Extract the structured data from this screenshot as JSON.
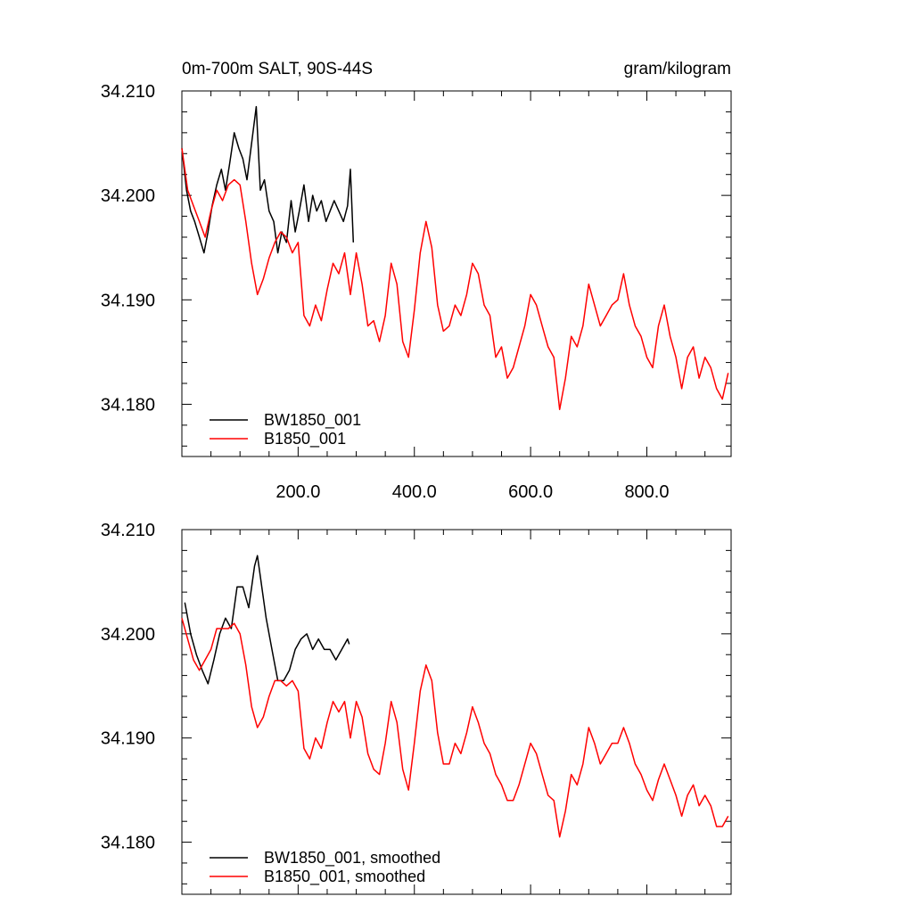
{
  "header": {
    "left_title": "0m-700m SALT, 90S-44S",
    "right_title": "gram/kilogram"
  },
  "chart_data": [
    {
      "type": "line",
      "panel": "raw",
      "xlim": [
        0,
        945
      ],
      "ylim": [
        34.175,
        34.21
      ],
      "xticks": [
        200,
        400,
        600,
        800
      ],
      "xtick_labels": [
        "200.0",
        "400.0",
        "600.0",
        "800.0"
      ],
      "yticks": [
        34.18,
        34.19,
        34.2,
        34.21
      ],
      "ytick_labels": [
        "34.180",
        "34.190",
        "34.200",
        "34.210"
      ],
      "grid": false,
      "legend_position": "bottom-left",
      "series": [
        {
          "name": "BW1850_001",
          "color": "#000000",
          "x": [
            0,
            8,
            15,
            22,
            30,
            38,
            45,
            52,
            60,
            68,
            75,
            82,
            90,
            98,
            105,
            112,
            120,
            128,
            135,
            142,
            150,
            158,
            165,
            172,
            180,
            188,
            195,
            202,
            210,
            218,
            225,
            232,
            240,
            248,
            255,
            262,
            270,
            278,
            285,
            290,
            295
          ],
          "y": [
            34.2045,
            34.2005,
            34.1985,
            34.1975,
            34.196,
            34.1945,
            34.1965,
            34.199,
            34.201,
            34.2025,
            34.2005,
            34.203,
            34.206,
            34.2045,
            34.2035,
            34.2015,
            34.205,
            34.2085,
            34.2005,
            34.2015,
            34.1985,
            34.1975,
            34.1945,
            34.1965,
            34.1955,
            34.1995,
            34.1965,
            34.1985,
            34.201,
            34.1975,
            34.2,
            34.1985,
            34.1995,
            34.1975,
            34.1985,
            34.1995,
            34.1985,
            34.1975,
            34.199,
            34.2025,
            34.1955
          ]
        },
        {
          "name": "B1850_001",
          "color": "#ff0000",
          "x": [
            0,
            10,
            20,
            30,
            40,
            50,
            60,
            70,
            80,
            90,
            100,
            110,
            120,
            130,
            140,
            150,
            160,
            170,
            180,
            190,
            200,
            210,
            220,
            230,
            240,
            250,
            260,
            270,
            280,
            290,
            300,
            310,
            320,
            330,
            340,
            350,
            360,
            370,
            380,
            390,
            400,
            410,
            420,
            430,
            440,
            450,
            460,
            470,
            480,
            490,
            500,
            510,
            520,
            530,
            540,
            550,
            560,
            570,
            580,
            590,
            600,
            610,
            620,
            630,
            640,
            650,
            660,
            670,
            680,
            690,
            700,
            710,
            720,
            730,
            740,
            750,
            760,
            770,
            780,
            790,
            800,
            810,
            820,
            830,
            840,
            850,
            860,
            870,
            880,
            890,
            900,
            910,
            920,
            930,
            940
          ],
          "y": [
            34.2045,
            34.2005,
            34.199,
            34.1975,
            34.196,
            34.1985,
            34.2005,
            34.1995,
            34.201,
            34.2015,
            34.201,
            34.1975,
            34.1935,
            34.1905,
            34.192,
            34.194,
            34.1955,
            34.1965,
            34.196,
            34.1945,
            34.1955,
            34.1885,
            34.1875,
            34.1895,
            34.188,
            34.191,
            34.1935,
            34.1925,
            34.1945,
            34.1905,
            34.1945,
            34.1915,
            34.1875,
            34.188,
            34.186,
            34.1885,
            34.1935,
            34.1915,
            34.186,
            34.1845,
            34.189,
            34.1945,
            34.1975,
            34.195,
            34.1895,
            34.187,
            34.1875,
            34.1895,
            34.1885,
            34.1905,
            34.1935,
            34.1925,
            34.1895,
            34.1885,
            34.1845,
            34.1855,
            34.1825,
            34.1835,
            34.1855,
            34.1875,
            34.1905,
            34.1895,
            34.1875,
            34.1855,
            34.1845,
            34.1795,
            34.1825,
            34.1865,
            34.1855,
            34.1875,
            34.1915,
            34.1895,
            34.1875,
            34.1885,
            34.1895,
            34.19,
            34.1925,
            34.1895,
            34.1875,
            34.1865,
            34.1845,
            34.1835,
            34.1875,
            34.1895,
            34.1865,
            34.1845,
            34.1815,
            34.1845,
            34.1855,
            34.1825,
            34.1845,
            34.1835,
            34.1815,
            34.1805,
            34.183
          ]
        }
      ]
    },
    {
      "type": "line",
      "panel": "smoothed",
      "xlim": [
        0,
        945
      ],
      "ylim": [
        34.175,
        34.21
      ],
      "xticks": [
        200,
        400,
        600,
        800
      ],
      "yticks": [
        34.18,
        34.19,
        34.2,
        34.21
      ],
      "ytick_labels": [
        "34.180",
        "34.190",
        "34.200",
        "34.210"
      ],
      "grid": false,
      "legend_position": "bottom-left",
      "series": [
        {
          "name": "BW1850_001, smoothed",
          "color": "#000000",
          "x": [
            5,
            15,
            25,
            35,
            45,
            55,
            65,
            75,
            85,
            95,
            105,
            115,
            125,
            130,
            135,
            145,
            155,
            165,
            175,
            185,
            195,
            205,
            215,
            225,
            235,
            245,
            255,
            265,
            275,
            285,
            288
          ],
          "y": [
            34.203,
            34.2,
            34.198,
            34.1965,
            34.1952,
            34.1975,
            34.2,
            34.2015,
            34.2005,
            34.2045,
            34.2045,
            34.2025,
            34.2065,
            34.2075,
            34.2055,
            34.2015,
            34.1985,
            34.1955,
            34.1955,
            34.1965,
            34.1985,
            34.1995,
            34.2,
            34.1985,
            34.1995,
            34.1985,
            34.1985,
            34.1975,
            34.1985,
            34.1995,
            34.199
          ]
        },
        {
          "name": "B1850_001, smoothed",
          "color": "#ff0000",
          "x": [
            0,
            10,
            20,
            30,
            40,
            50,
            60,
            70,
            80,
            90,
            100,
            110,
            120,
            130,
            140,
            150,
            160,
            170,
            180,
            190,
            200,
            210,
            220,
            230,
            240,
            250,
            260,
            270,
            280,
            290,
            300,
            310,
            320,
            330,
            340,
            350,
            360,
            370,
            380,
            390,
            400,
            410,
            420,
            430,
            440,
            450,
            460,
            470,
            480,
            490,
            500,
            510,
            520,
            530,
            540,
            550,
            560,
            570,
            580,
            590,
            600,
            610,
            620,
            630,
            640,
            650,
            660,
            670,
            680,
            690,
            700,
            710,
            720,
            730,
            740,
            750,
            760,
            770,
            780,
            790,
            800,
            810,
            820,
            830,
            840,
            850,
            860,
            870,
            880,
            890,
            900,
            910,
            920,
            930,
            940
          ],
          "y": [
            34.2015,
            34.1995,
            34.1975,
            34.1965,
            34.1975,
            34.1985,
            34.2005,
            34.2005,
            34.2005,
            34.201,
            34.2,
            34.197,
            34.193,
            34.191,
            34.192,
            34.194,
            34.1955,
            34.1955,
            34.195,
            34.1955,
            34.1945,
            34.189,
            34.188,
            34.19,
            34.189,
            34.1915,
            34.1935,
            34.1925,
            34.1935,
            34.19,
            34.1935,
            34.192,
            34.1885,
            34.187,
            34.1865,
            34.1895,
            34.1935,
            34.1915,
            34.187,
            34.185,
            34.1895,
            34.1945,
            34.197,
            34.1955,
            34.1905,
            34.1875,
            34.1875,
            34.1895,
            34.1885,
            34.1905,
            34.193,
            34.1915,
            34.1895,
            34.1885,
            34.1865,
            34.1855,
            34.184,
            34.184,
            34.1855,
            34.1875,
            34.1895,
            34.1885,
            34.1865,
            34.1845,
            34.184,
            34.1805,
            34.183,
            34.1865,
            34.1855,
            34.1875,
            34.191,
            34.1895,
            34.1875,
            34.1885,
            34.1895,
            34.1895,
            34.191,
            34.1895,
            34.1875,
            34.1865,
            34.185,
            34.184,
            34.186,
            34.1875,
            34.186,
            34.1845,
            34.1825,
            34.1845,
            34.1855,
            34.1835,
            34.1845,
            34.1835,
            34.1815,
            34.1815,
            34.1825
          ]
        }
      ]
    }
  ]
}
